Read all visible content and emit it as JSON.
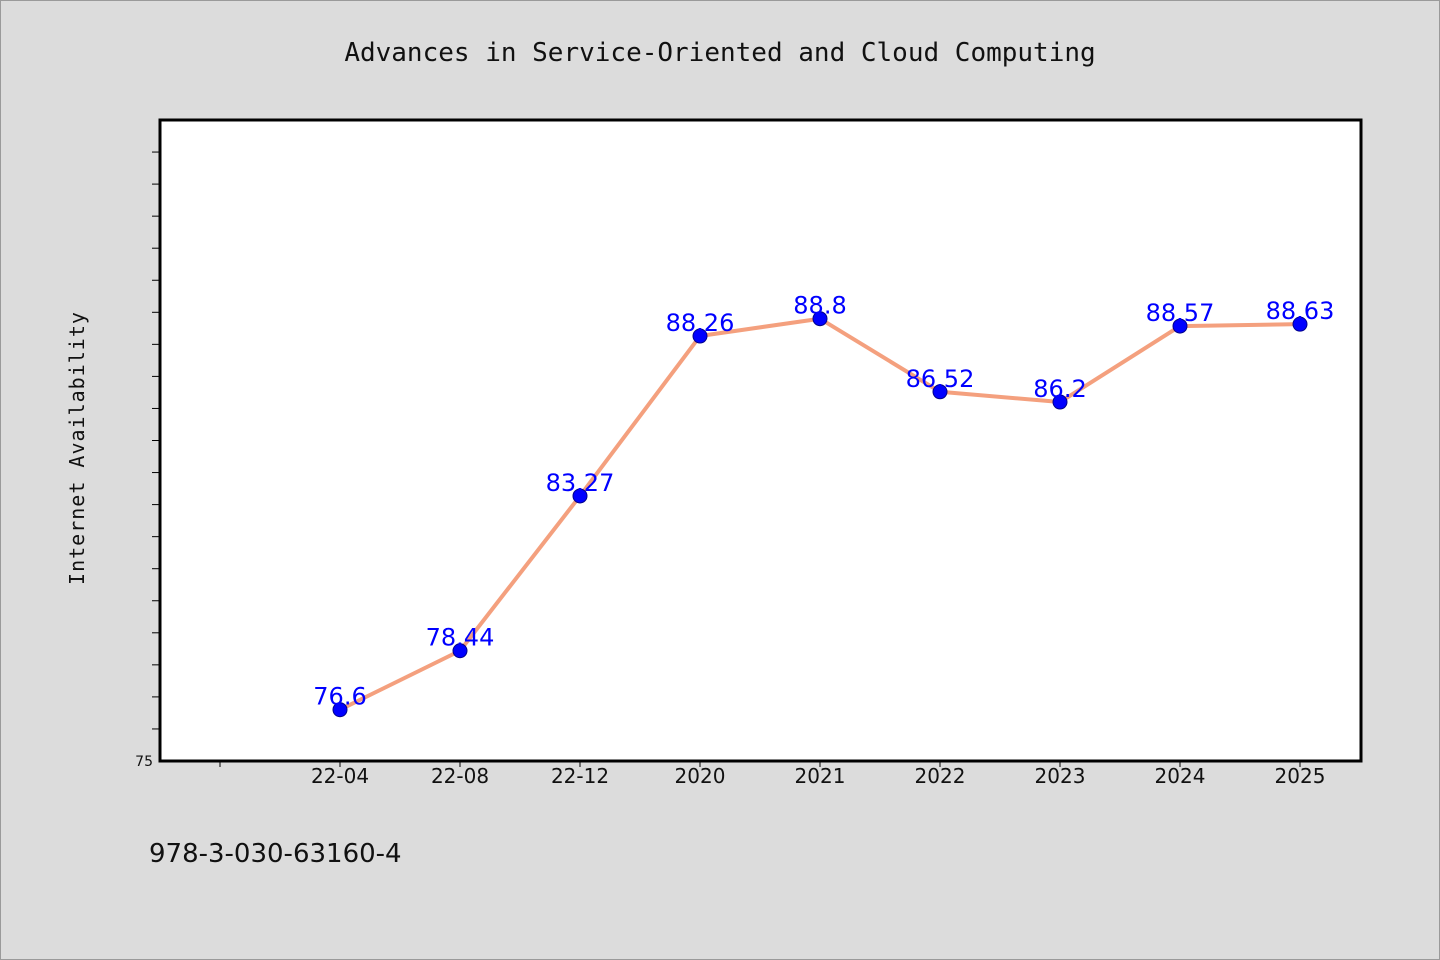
{
  "chart_data": {
    "type": "line",
    "title": "Advances in Service-Oriented and Cloud Computing",
    "xlabel": "",
    "ylabel": "Internet Availability",
    "categories": [
      "22-04",
      "22-08",
      "22-12",
      "2020",
      "2021",
      "2022",
      "2023",
      "2024",
      "2025"
    ],
    "series": [
      {
        "values": [
          76.6,
          78.44,
          83.27,
          88.26,
          88.8,
          86.52,
          86.2,
          88.57,
          88.63
        ],
        "data_labels": [
          "76.6",
          "78.44",
          "83.27",
          "88.26",
          "88.8",
          "86.52",
          "86.2",
          "88.57",
          "88.63"
        ],
        "line_color": "#f4a07e",
        "marker_color": "#0000ff"
      }
    ],
    "ylim": [
      75,
      95
    ],
    "yticks_labeled": [
      "75"
    ],
    "grid": false,
    "legend": "none"
  },
  "footer": {
    "isbn": "978-3-030-63160-4"
  }
}
